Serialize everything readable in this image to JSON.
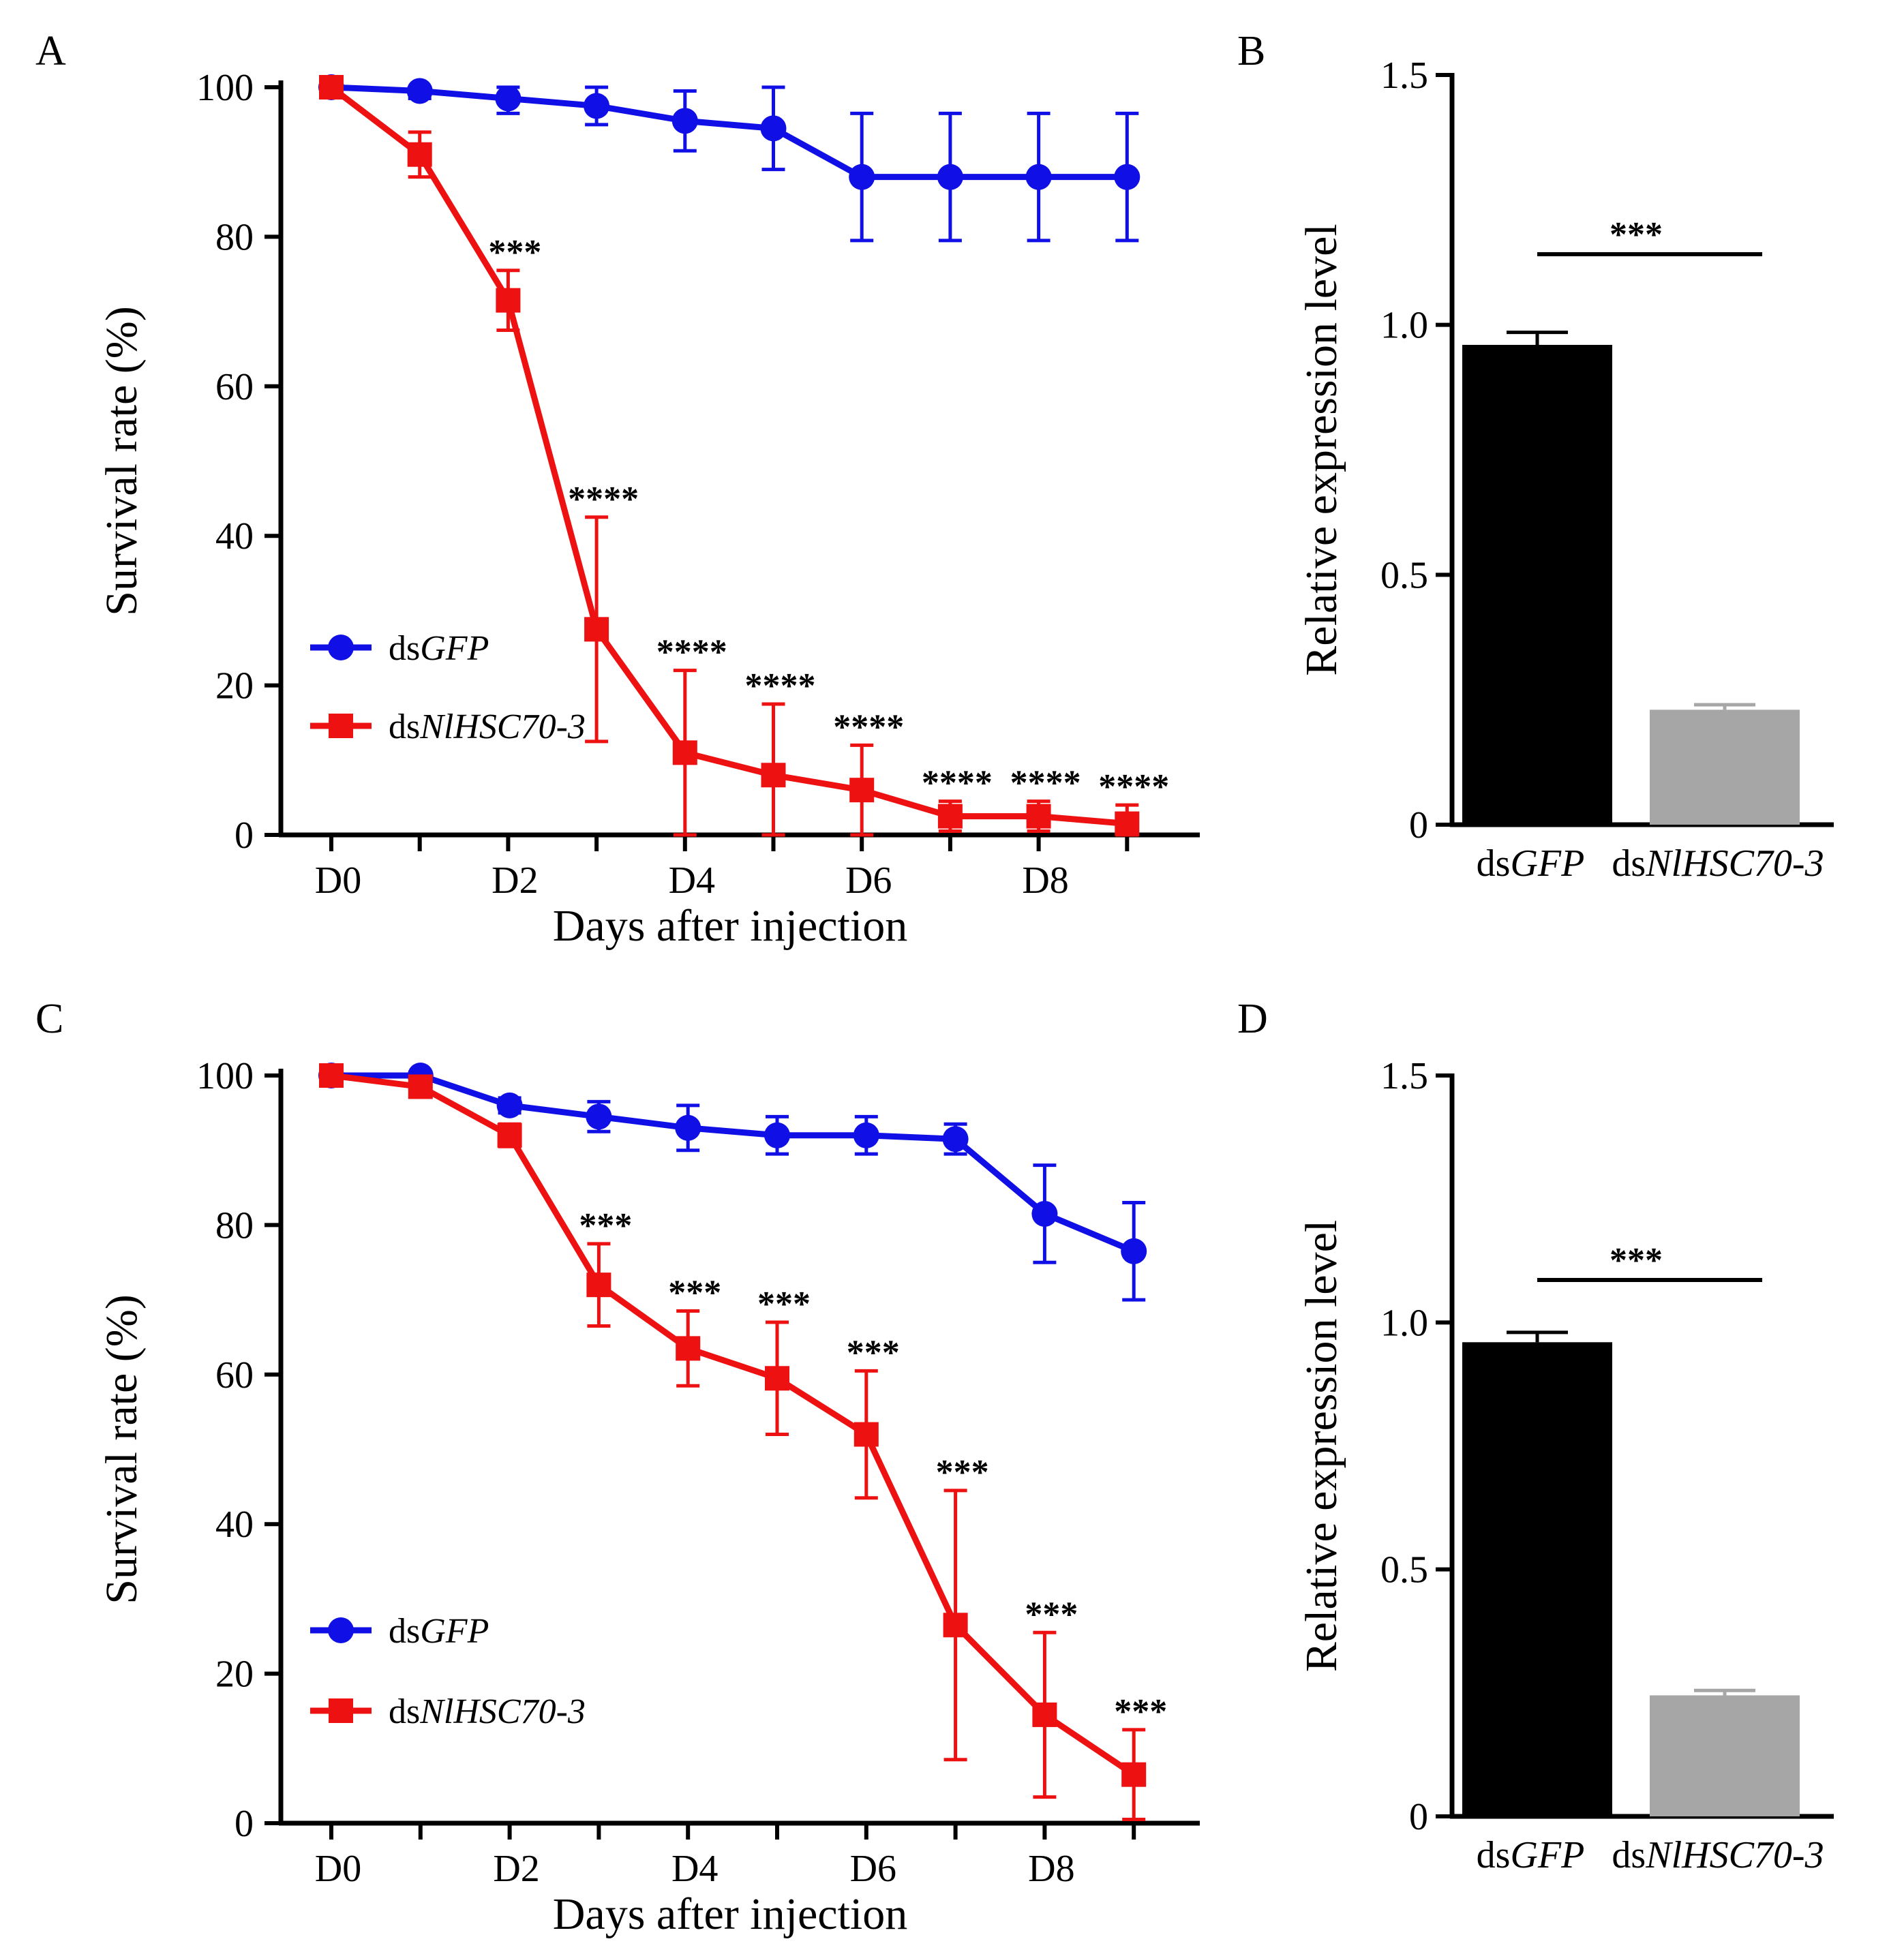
{
  "figure": {
    "panels": [
      "A",
      "B",
      "C",
      "D"
    ]
  },
  "colors": {
    "dsGFP": "#1010e6",
    "dsNlHSC70_3": "#ee1111",
    "bar1": "#000000",
    "bar2": "#a6a6a6",
    "axis": "#000000"
  },
  "chart_data": [
    {
      "panel": "A",
      "type": "line",
      "xlabel": "Days after injection",
      "ylabel": "Survival rate (%)",
      "ylim": [
        0,
        100
      ],
      "yticks": [
        0,
        20,
        40,
        60,
        80,
        100
      ],
      "x": [
        0,
        1,
        2,
        3,
        4,
        5,
        6,
        7,
        8,
        9
      ],
      "xtick_labels": [
        "D0",
        "D2",
        "D4",
        "D6",
        "D8"
      ],
      "xtick_label_positions": [
        0,
        2,
        4,
        6,
        8
      ],
      "legend_position": "lower-left",
      "series": [
        {
          "name": "dsGFP",
          "legend_prefix": "ds",
          "legend_italic": "GFP",
          "marker": "circle",
          "values": [
            100,
            99.5,
            98.5,
            97.5,
            95.5,
            94.5,
            88,
            88,
            88,
            88
          ],
          "errors": [
            1,
            1,
            2,
            2.5,
            4,
            5.5,
            8.5,
            8.5,
            8.5,
            8.5
          ]
        },
        {
          "name": "dsNlHSC70-3",
          "legend_prefix": "ds",
          "legend_italic": "NlHSC70-3",
          "marker": "square",
          "values": [
            100,
            91,
            71.5,
            27.5,
            11,
            8,
            6,
            2.5,
            2.5,
            1.5
          ],
          "errors": [
            1,
            3,
            4,
            15,
            11,
            9.5,
            6,
            2,
            2,
            2.5
          ]
        }
      ],
      "significance": [
        "",
        "",
        "***",
        "****",
        "****",
        "****",
        "****",
        "****",
        "****",
        "****"
      ]
    },
    {
      "panel": "B",
      "type": "bar",
      "ylabel": "Relative expression level",
      "ylim": [
        0,
        1.5
      ],
      "yticks": [
        0,
        0.5,
        1.0,
        1.5
      ],
      "ytick_labels": [
        "0",
        "0.5",
        "1.0",
        "1.5"
      ],
      "categories": [
        "dsGFP",
        "dsNlHSC70-3"
      ],
      "category_prefix": [
        "ds",
        "ds"
      ],
      "category_italic": [
        "GFP",
        "NlHSC70-3"
      ],
      "values": [
        0.96,
        0.23
      ],
      "errors": [
        0.025,
        0.01
      ],
      "significance": "***"
    },
    {
      "panel": "C",
      "type": "line",
      "xlabel": "Days after injection",
      "ylabel": "Survival rate (%)",
      "ylim": [
        0,
        100
      ],
      "yticks": [
        0,
        20,
        40,
        60,
        80,
        100
      ],
      "x": [
        0,
        1,
        2,
        3,
        4,
        5,
        6,
        7,
        8,
        9
      ],
      "xtick_labels": [
        "D0",
        "D2",
        "D4",
        "D6",
        "D8"
      ],
      "xtick_label_positions": [
        0,
        2,
        4,
        6,
        8
      ],
      "legend_position": "lower-left",
      "series": [
        {
          "name": "dsGFP",
          "legend_prefix": "ds",
          "legend_italic": "GFP",
          "marker": "circle",
          "values": [
            100,
            100,
            96,
            94.5,
            93,
            92,
            92,
            91.5,
            81.5,
            76.5
          ],
          "errors": [
            0.5,
            0.5,
            1,
            2,
            3,
            2.5,
            2.5,
            2,
            6.5,
            6.5
          ]
        },
        {
          "name": "dsNlHSC70-3",
          "legend_prefix": "ds",
          "legend_italic": "NlHSC70-3",
          "marker": "square",
          "values": [
            100,
            98.5,
            92,
            72,
            63.5,
            59.5,
            52,
            26.5,
            14.5,
            6.5
          ],
          "errors": [
            0.5,
            1,
            1.5,
            5.5,
            5,
            7.5,
            8.5,
            18,
            11,
            6
          ]
        }
      ],
      "significance": [
        "",
        "",
        "",
        "***",
        "***",
        "***",
        "***",
        "***",
        "***",
        "***"
      ]
    },
    {
      "panel": "D",
      "type": "bar",
      "ylabel": "Relative expression level",
      "ylim": [
        0,
        1.5
      ],
      "yticks": [
        0,
        0.5,
        1.0,
        1.5
      ],
      "ytick_labels": [
        "0",
        "0.5",
        "1.0",
        "1.5"
      ],
      "categories": [
        "dsGFP",
        "dsNlHSC70-3"
      ],
      "category_prefix": [
        "ds",
        "ds"
      ],
      "category_italic": [
        "GFP",
        "NlHSC70-3"
      ],
      "values": [
        0.96,
        0.245
      ],
      "errors": [
        0.02,
        0.01
      ],
      "significance": "***"
    }
  ]
}
